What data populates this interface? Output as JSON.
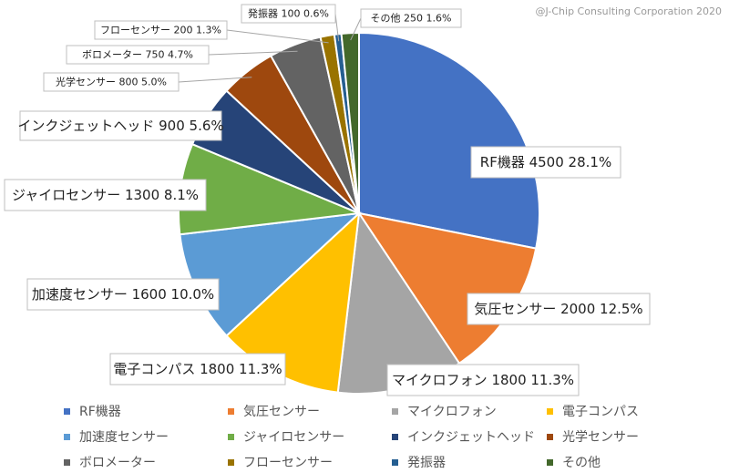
{
  "copyright": "@J-Chip Consulting Corporation 2020",
  "chart_data": {
    "type": "pie",
    "title": "",
    "start_angle_deg": 0,
    "slices": [
      {
        "name": "RF機器",
        "value": 4500,
        "percent": "28.1%",
        "label": "RF機器 4500 28.1%",
        "color": "#4472C4"
      },
      {
        "name": "気圧センサー",
        "value": 2000,
        "percent": "12.5%",
        "label": "気圧センサー 2000 12.5%",
        "color": "#ED7D31"
      },
      {
        "name": "マイクロフォン",
        "value": 1800,
        "percent": "11.3%",
        "label": "マイクロフォン 1800 11.3%",
        "color": "#A5A5A5"
      },
      {
        "name": "電子コンパス",
        "value": 1800,
        "percent": "11.3%",
        "label": "電子コンパス 1800 11.3%",
        "color": "#FFC000"
      },
      {
        "name": "加速度センサー",
        "value": 1600,
        "percent": "10.0%",
        "label": "加速度センサー 1600 10.0%",
        "color": "#5B9BD5"
      },
      {
        "name": "ジャイロセンサー",
        "value": 1300,
        "percent": "8.1%",
        "label": "ジャイロセンサー 1300 8.1%",
        "color": "#70AD47"
      },
      {
        "name": "インクジェットヘッド",
        "value": 900,
        "percent": "5.6%",
        "label": "インクジェットヘッド 900 5.6%",
        "color": "#264478"
      },
      {
        "name": "光学センサー",
        "value": 800,
        "percent": "5.0%",
        "label": "光学センサー 800 5.0%",
        "color": "#9E480E"
      },
      {
        "name": "ボロメーター",
        "value": 750,
        "percent": "4.7%",
        "label": "ボロメーター 750 4.7%",
        "color": "#636363"
      },
      {
        "name": "フローセンサー",
        "value": 200,
        "percent": "1.3%",
        "label": "フローセンサー 200 1.3%",
        "color": "#997300"
      },
      {
        "name": "発振器",
        "value": 100,
        "percent": "0.6%",
        "label": "発振器 100 0.6%",
        "color": "#255E91"
      },
      {
        "name": "その他",
        "value": 250,
        "percent": "1.6%",
        "label": "その他 250 1.6%",
        "color": "#43682B"
      }
    ],
    "legend": {
      "position": "bottom"
    }
  }
}
